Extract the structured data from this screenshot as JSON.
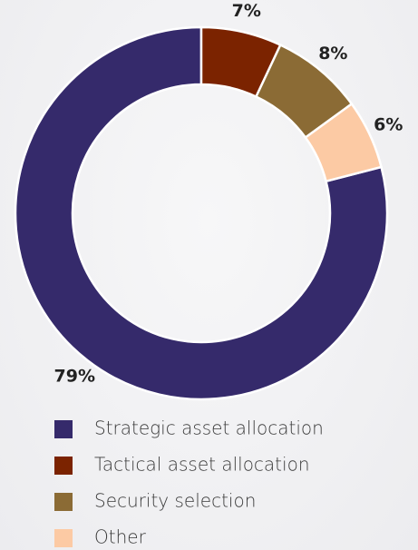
{
  "chart_data": {
    "type": "pie",
    "categories": [
      "Strategic asset allocation",
      "Tactical asset allocation",
      "Security selection",
      "Other"
    ],
    "values": [
      79,
      7,
      8,
      6
    ],
    "value_labels": [
      "79%",
      "7%",
      "8%",
      "6%"
    ],
    "colors": [
      "#352a6b",
      "#7b2300",
      "#8b6b35",
      "#fccaa4"
    ],
    "donut": true,
    "legend": "bottom"
  }
}
